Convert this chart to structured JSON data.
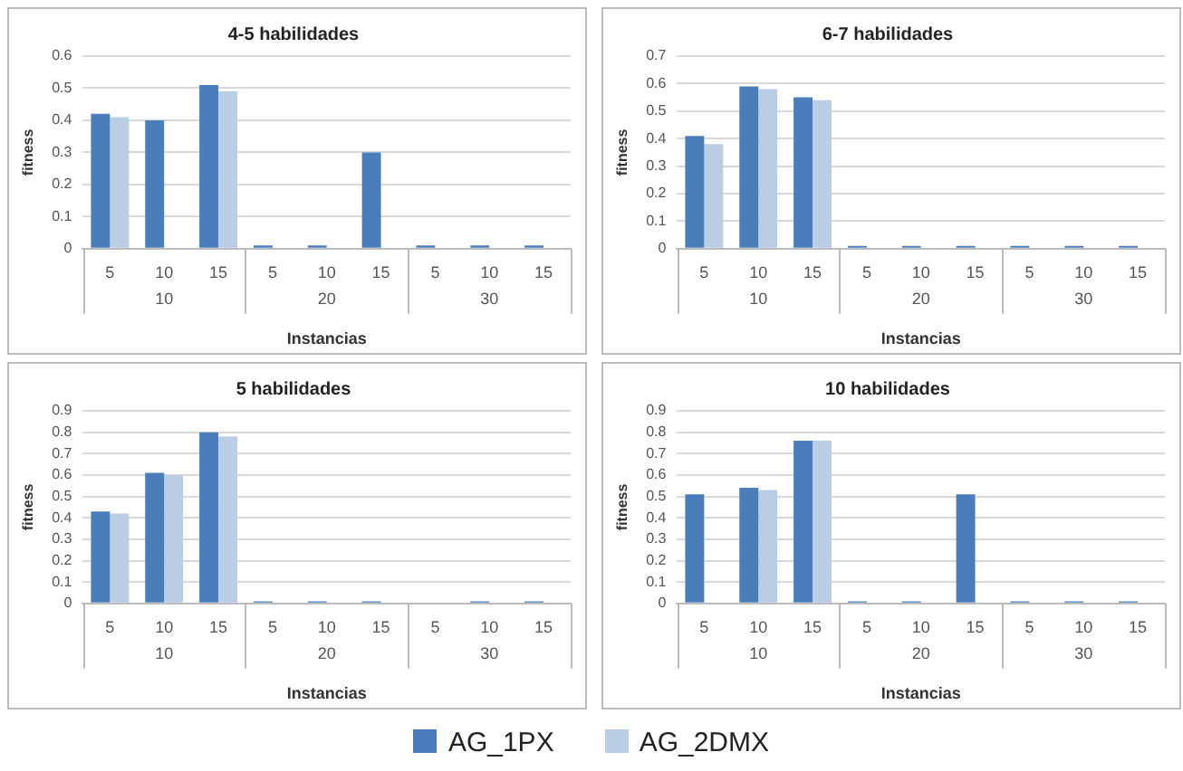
{
  "chart_data": [
    {
      "type": "bar",
      "title": "4-5 habilidades",
      "xlabel": "Instancias",
      "ylabel": "fitness",
      "categories": [
        "5",
        "10",
        "15",
        "5",
        "10",
        "15",
        "5",
        "10",
        "15"
      ],
      "annotations": [
        "10",
        "20",
        "30"
      ],
      "ylim": [
        0,
        0.6
      ],
      "yticks": [
        0,
        0.1,
        0.2,
        0.3,
        0.4,
        0.5,
        0.6
      ],
      "grid": "y",
      "legend": "bottom",
      "series": [
        {
          "name": "AG_1PX",
          "color": "#4a7ebb",
          "values": [
            0.42,
            0.4,
            0.51,
            0.01,
            0.01,
            0.3,
            0.01,
            0.01,
            0.01
          ]
        },
        {
          "name": "AG_2DMX",
          "color": "#b9cde5",
          "values": [
            0.41,
            0,
            0.49,
            0,
            0,
            0,
            0,
            0,
            0
          ]
        }
      ]
    },
    {
      "type": "bar",
      "title": "6-7 habilidades",
      "xlabel": "Instancias",
      "ylabel": "fitness",
      "categories": [
        "5",
        "10",
        "15",
        "5",
        "10",
        "15",
        "5",
        "10",
        "15"
      ],
      "annotations": [
        "10",
        "20",
        "30"
      ],
      "ylim": [
        0,
        0.7
      ],
      "yticks": [
        0,
        0.1,
        0.2,
        0.3,
        0.4,
        0.5,
        0.6,
        0.7
      ],
      "grid": "y",
      "series": [
        {
          "color": "#4a7ebb",
          "values": [
            0.41,
            0.59,
            0.55,
            0.01,
            0.01,
            0.01,
            0.01,
            0.01,
            0.01
          ]
        },
        {
          "color": "#b9cde5",
          "values": [
            0.38,
            0.58,
            0.54,
            0,
            0,
            0,
            0,
            0,
            0
          ]
        }
      ]
    },
    {
      "type": "bar",
      "title": "5 habilidades",
      "xlabel": "Instancias",
      "ylabel": "fitness",
      "categories": [
        "5",
        "10",
        "15",
        "5",
        "10",
        "15",
        "5",
        "10",
        "15"
      ],
      "annotations": [
        "10",
        "20",
        "30"
      ],
      "ylim": [
        0,
        0.9
      ],
      "yticks": [
        0,
        0.1,
        0.2,
        0.3,
        0.4,
        0.5,
        0.6,
        0.7,
        0.8,
        0.9
      ],
      "grid": "y",
      "series": [
        {
          "color": "#4a7ebb",
          "values": [
            0.43,
            0.61,
            0.8,
            0.01,
            0.01,
            0.01,
            0,
            0.01,
            0.01
          ]
        },
        {
          "color": "#b9cde5",
          "values": [
            0.42,
            0.6,
            0.78,
            0,
            0,
            0,
            0,
            0,
            0
          ]
        }
      ]
    },
    {
      "type": "bar",
      "title": "10 habilidades",
      "xlabel": "Instancias",
      "ylabel": "fitness",
      "categories": [
        "5",
        "10",
        "15",
        "5",
        "10",
        "15",
        "5",
        "10",
        "15"
      ],
      "annotations": [
        "10",
        "20",
        "30"
      ],
      "ylim": [
        0,
        0.9
      ],
      "yticks": [
        0,
        0.1,
        0.2,
        0.3,
        0.4,
        0.5,
        0.6,
        0.7,
        0.8,
        0.9
      ],
      "grid": "y",
      "series": [
        {
          "color": "#4a7ebb",
          "values": [
            0.51,
            0.54,
            0.76,
            0.01,
            0.01,
            0.51,
            0.01,
            0.01,
            0.01
          ]
        },
        {
          "color": "#b9cde5",
          "values": [
            0,
            0.53,
            0.76,
            0,
            0,
            0,
            0,
            0,
            0
          ]
        }
      ]
    }
  ]
}
